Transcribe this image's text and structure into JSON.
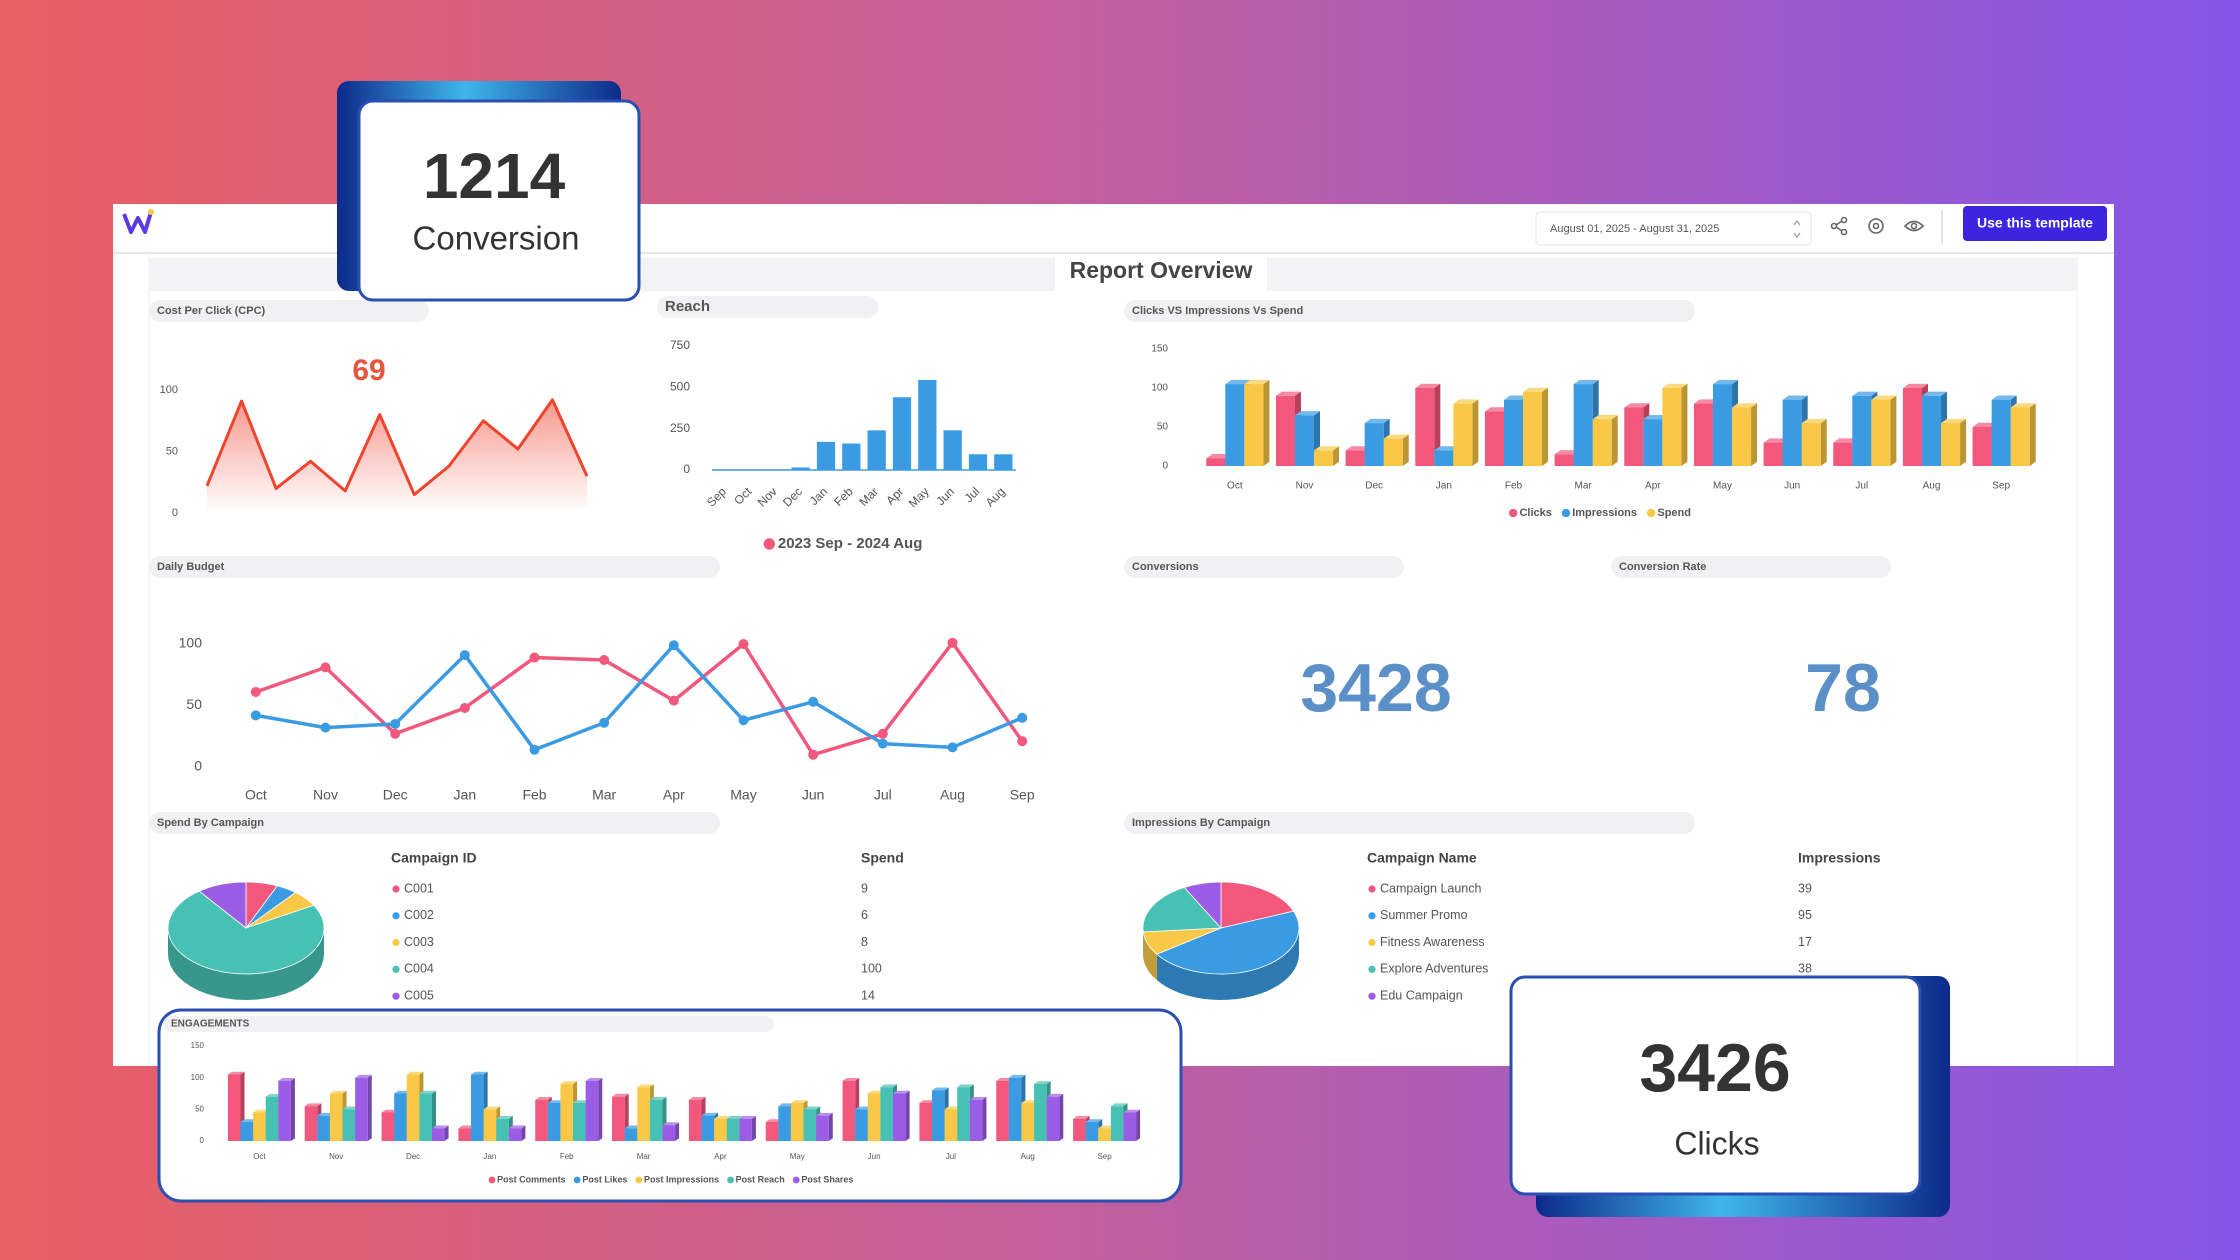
{
  "header": {
    "date_range": "August 01, 2025 - August 31, 2025",
    "button": "Use this template",
    "title": "Report Overview"
  },
  "overlay_cards": [
    {
      "value": 1214,
      "label": "Conversion"
    },
    {
      "value": 3426,
      "label": "Clicks"
    }
  ],
  "kpis": [
    {
      "title": "Conversions",
      "value": 3428
    },
    {
      "title": "Conversion Rate",
      "value": 78
    }
  ],
  "chart_data": [
    {
      "type": "area",
      "title": "Cost Per Click (CPC)",
      "kpi": 69,
      "color": "#f0442e",
      "values": [
        22,
        91,
        20,
        42,
        18,
        80,
        15,
        38,
        75,
        52,
        92,
        30
      ],
      "ylim": [
        0,
        100
      ],
      "yticks": [
        0,
        50,
        100
      ]
    },
    {
      "type": "bar",
      "title": "Reach",
      "categories": [
        "Sep",
        "Oct",
        "Nov",
        "Dec",
        "Jan",
        "Feb",
        "Mar",
        "Apr",
        "May",
        "Jun",
        "Jul",
        "Aug"
      ],
      "series": [
        {
          "name": "2023 Sep - 2024 Aug",
          "color": "#3a9be3",
          "values": [
            0,
            0,
            0,
            15,
            170,
            160,
            240,
            440,
            545,
            240,
            95,
            95
          ]
        }
      ],
      "legend_marker_color": "#f2577c",
      "ylim": [
        0,
        750
      ],
      "yticks": [
        0,
        250,
        500,
        750
      ]
    },
    {
      "type": "bar",
      "title": "Clicks VS Impressions Vs Spend",
      "categories": [
        "Oct",
        "Nov",
        "Dec",
        "Jan",
        "Feb",
        "Mar",
        "Apr",
        "May",
        "Jun",
        "Jul",
        "Aug",
        "Sep"
      ],
      "series": [
        {
          "name": "Clicks",
          "color": "#f2577c",
          "values": [
            10,
            90,
            20,
            100,
            70,
            15,
            75,
            80,
            30,
            30,
            100,
            50
          ]
        },
        {
          "name": "Impressions",
          "color": "#3a9be3",
          "values": [
            105,
            65,
            55,
            20,
            85,
            105,
            60,
            105,
            85,
            90,
            90,
            85
          ]
        },
        {
          "name": "Spend",
          "color": "#f9c846",
          "values": [
            105,
            20,
            35,
            80,
            95,
            60,
            100,
            75,
            55,
            85,
            55,
            75
          ]
        }
      ],
      "ylim": [
        0,
        150
      ],
      "yticks": [
        0,
        50,
        100,
        150
      ]
    },
    {
      "type": "line",
      "title": "Daily Budget",
      "categories": [
        "Oct",
        "Nov",
        "Dec",
        "Jan",
        "Feb",
        "Mar",
        "Apr",
        "May",
        "Jun",
        "Jul",
        "Aug",
        "Sep"
      ],
      "series": [
        {
          "color": "#f2577c",
          "values": [
            61,
            81,
            27,
            48,
            89,
            87,
            54,
            100,
            10,
            27,
            101,
            21
          ]
        },
        {
          "color": "#3a9be3",
          "values": [
            42,
            32,
            35,
            91,
            14,
            36,
            99,
            38,
            53,
            19,
            16,
            40
          ]
        }
      ],
      "ylim": [
        0,
        110
      ],
      "yticks": [
        0,
        50,
        100
      ]
    },
    {
      "type": "pie",
      "title": "Spend By Campaign",
      "table_headers": [
        "Campaign ID",
        "Spend"
      ],
      "categories": [
        "C001",
        "C002",
        "C003",
        "C004",
        "C005"
      ],
      "values": [
        9,
        6,
        8,
        100,
        14
      ],
      "colors": [
        "#f2577c",
        "#3a9be3",
        "#f9c846",
        "#47c1b3",
        "#9b5de5"
      ]
    },
    {
      "type": "pie",
      "title": "Impressions By Campaign",
      "table_headers": [
        "Campaign Name",
        "Impressions"
      ],
      "categories": [
        "Campaign Launch",
        "Summer Promo",
        "Fitness Awareness",
        "Explore Adventures",
        "Edu Campaign"
      ],
      "values": [
        39,
        95,
        17,
        38,
        16
      ],
      "colors": [
        "#f2577c",
        "#3a9be3",
        "#f9c846",
        "#47c1b3",
        "#9b5de5"
      ]
    },
    {
      "type": "bar",
      "title": "ENGAGEMENTS",
      "categories": [
        "Oct",
        "Nov",
        "Dec",
        "Jan",
        "Feb",
        "Mar",
        "Apr",
        "May",
        "Jun",
        "Jul",
        "Aug",
        "Sep"
      ],
      "series": [
        {
          "name": "Post Comments",
          "color": "#f2577c",
          "values": [
            105,
            55,
            45,
            20,
            65,
            70,
            65,
            30,
            95,
            60,
            95,
            35
          ]
        },
        {
          "name": "Post Likes",
          "color": "#3a9be3",
          "values": [
            30,
            40,
            75,
            105,
            60,
            20,
            40,
            55,
            50,
            80,
            100,
            30
          ]
        },
        {
          "name": "Post Impressions",
          "color": "#f9c846",
          "values": [
            45,
            75,
            105,
            50,
            90,
            85,
            35,
            60,
            75,
            50,
            60,
            20
          ]
        },
        {
          "name": "Post Reach",
          "color": "#47c1b3",
          "values": [
            70,
            50,
            75,
            35,
            60,
            65,
            35,
            50,
            85,
            85,
            90,
            55
          ]
        },
        {
          "name": "Post Shares",
          "color": "#9b5de5",
          "values": [
            95,
            100,
            20,
            20,
            95,
            25,
            35,
            40,
            75,
            65,
            70,
            45
          ]
        }
      ],
      "ylim": [
        0,
        150
      ],
      "yticks": [
        0,
        50,
        100,
        150
      ]
    }
  ]
}
